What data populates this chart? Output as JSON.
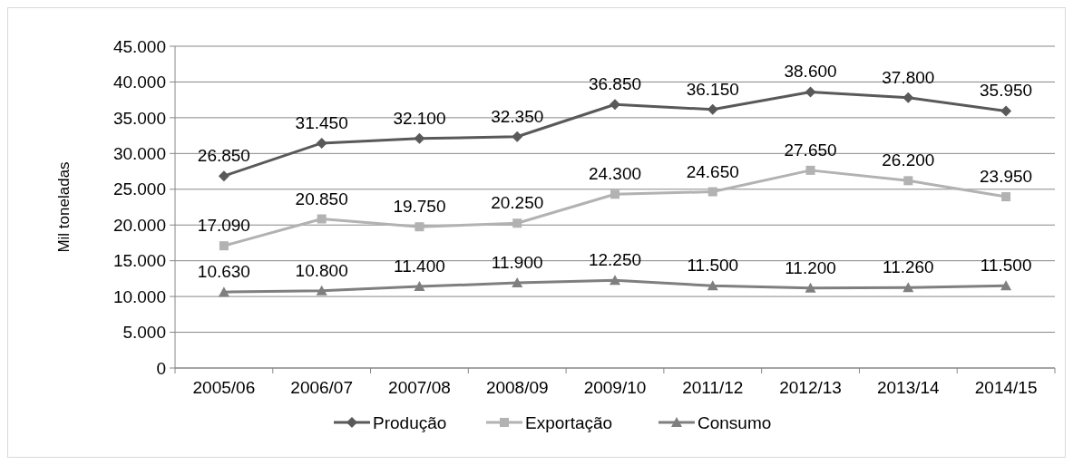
{
  "chart_data": {
    "type": "line",
    "ylabel": "Mil toneladas",
    "categories": [
      "2005/06",
      "2006/07",
      "2007/08",
      "2008/09",
      "2009/10",
      "2011/12",
      "2012/13",
      "2013/14",
      "2014/15"
    ],
    "series": [
      {
        "name": "Produção",
        "color": "#595959",
        "marker": "diamond",
        "values": [
          26850,
          31450,
          32100,
          32350,
          36850,
          36150,
          38600,
          37800,
          35950
        ],
        "value_labels": [
          "26.850",
          "31.450",
          "32.100",
          "32.350",
          "36.850",
          "36.150",
          "38.600",
          "37.800",
          "35.950"
        ]
      },
      {
        "name": "Exportação",
        "color": "#b2b2b2",
        "marker": "square",
        "values": [
          17090,
          20850,
          19750,
          20250,
          24300,
          24650,
          27650,
          26200,
          23950
        ],
        "value_labels": [
          "17.090",
          "20.850",
          "19.750",
          "20.250",
          "24.300",
          "24.650",
          "27.650",
          "26.200",
          "23.950"
        ]
      },
      {
        "name": "Consumo",
        "color": "#7f7f7f",
        "marker": "triangle",
        "values": [
          10630,
          10800,
          11400,
          11900,
          12250,
          11500,
          11200,
          11260,
          11500
        ],
        "value_labels": [
          "10.630",
          "10.800",
          "11.400",
          "11.900",
          "12.250",
          "11.500",
          "11.200",
          "11.260",
          "11.500"
        ]
      }
    ],
    "ylim": [
      0,
      45000
    ],
    "yticks": [
      {
        "value": 0,
        "label": "0"
      },
      {
        "value": 5000,
        "label": "5.000"
      },
      {
        "value": 10000,
        "label": "10.000"
      },
      {
        "value": 15000,
        "label": "15.000"
      },
      {
        "value": 20000,
        "label": "20.000"
      },
      {
        "value": 25000,
        "label": "25.000"
      },
      {
        "value": 30000,
        "label": "30.000"
      },
      {
        "value": 35000,
        "label": "35.000"
      },
      {
        "value": 40000,
        "label": "40.000"
      },
      {
        "value": 45000,
        "label": "45.000"
      }
    ],
    "grid": "y",
    "legend": "bottom"
  }
}
